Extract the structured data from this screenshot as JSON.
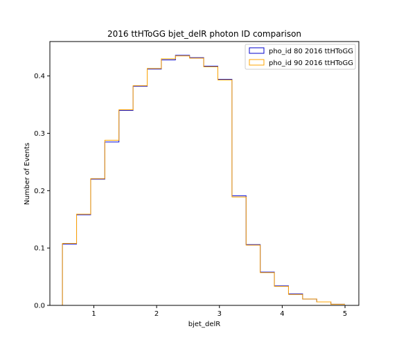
{
  "chart_data": {
    "type": "step-histogram",
    "title": "2016 ttHToGG bjet_delR photon ID comparison",
    "xlabel": "bjet_delR",
    "ylabel": "Number of Events",
    "xlim": [
      0.3,
      5.22
    ],
    "ylim": [
      0.0,
      0.46
    ],
    "xticks": [
      1,
      2,
      3,
      4,
      5
    ],
    "yticks": [
      0.0,
      0.1,
      0.2,
      0.3,
      0.4
    ],
    "ytick_labels": [
      "0.0",
      "0.1",
      "0.2",
      "0.3",
      "0.4"
    ],
    "bin_edges": [
      0.5,
      0.725,
      0.95,
      1.175,
      1.4,
      1.625,
      1.85,
      2.075,
      2.3,
      2.525,
      2.75,
      2.975,
      3.2,
      3.425,
      3.65,
      3.875,
      4.1,
      4.325,
      4.55,
      4.775,
      5.0
    ],
    "legend_position": "upper right",
    "grid": false,
    "series": [
      {
        "name": "pho_id 80 2016 ttHToGG",
        "color": "#0000cc",
        "values": [
          0.107,
          0.158,
          0.22,
          0.285,
          0.34,
          0.382,
          0.412,
          0.428,
          0.436,
          0.432,
          0.417,
          0.394,
          0.191,
          0.106,
          0.058,
          0.034,
          0.02,
          0.011,
          0.006,
          0.002
        ]
      },
      {
        "name": "pho_id 90 2016 ttHToGG",
        "color": "#ffa500",
        "values": [
          0.108,
          0.159,
          0.221,
          0.288,
          0.341,
          0.383,
          0.413,
          0.43,
          0.435,
          0.431,
          0.416,
          0.393,
          0.189,
          0.105,
          0.057,
          0.033,
          0.019,
          0.011,
          0.006,
          0.002
        ]
      }
    ]
  }
}
